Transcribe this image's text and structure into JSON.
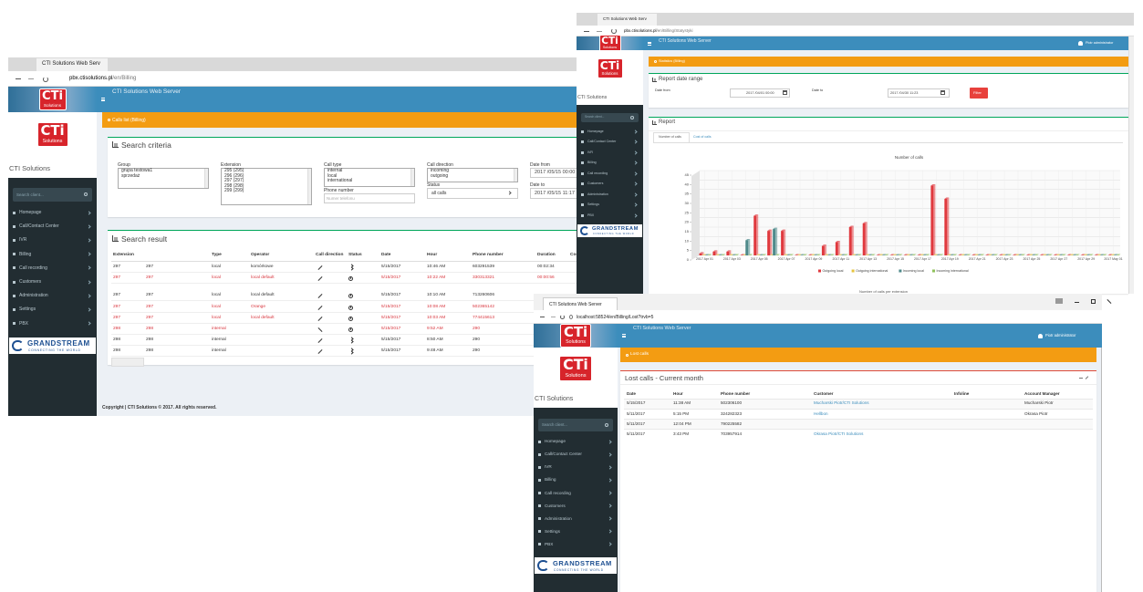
{
  "sidebar": {
    "logo": "CTi",
    "logo_sub": "Solutions",
    "company": "CTI Solutions",
    "search": "Search client...",
    "menu": [
      "Homepage",
      "Call/Contact Center",
      "IVR",
      "Billing",
      "Call recording",
      "Customers",
      "Administration",
      "Settings",
      "PBX"
    ],
    "brand": "GRANDSTREAM",
    "brand_sub": "CONNECTING THE WORLD"
  },
  "header": {
    "app": "CTI Solutions Web Server",
    "user": "Piotr administrator"
  },
  "footer": "Copyright | CTI Solutions © 2017. All rights reserved.",
  "billing": {
    "tab": "CTI Solutions Web Serv",
    "url_host": "pbx.ctisolutions.pl",
    "url_path": "/en/Billing",
    "breadcrumb": "Calls list (Billing)",
    "search_title": "Search criteria",
    "group": {
      "label": "Group",
      "options": [
        "grupa testowa1",
        "sprzedaż"
      ]
    },
    "extension": {
      "label": "Extension",
      "options": [
        "295 (295)",
        "296 (296)",
        "297 (297)",
        "298 (298)",
        "299 (299)"
      ]
    },
    "call_type": {
      "label": "Call type",
      "options": [
        "internal",
        "local",
        "international"
      ]
    },
    "phone": {
      "label": "Phone number",
      "placeholder": "Numer telefonu"
    },
    "call_direction": {
      "label": "Call direction",
      "options": [
        "incoming",
        "outgoing"
      ]
    },
    "status": {
      "label": "Status",
      "value": "all calls"
    },
    "date_from": {
      "label": "Date from",
      "value": "2017 /05/15 00:00"
    },
    "date_to": {
      "label": "Date to",
      "value": "2017 /05/15 11:17"
    },
    "result_title": "Search result",
    "columns": [
      "Extension",
      "Type",
      "Operator",
      "Call direction",
      "Status",
      "Date",
      "Hour",
      "Phone number",
      "Duration",
      "Cost"
    ],
    "rows": [
      {
        "extension": "297",
        "extension_name": "297",
        "type": "local",
        "operator": "komórkowe",
        "date": "5/15/2017",
        "hour": "10:46 AM",
        "phone": "603291539",
        "duration": "00:02:34"
      },
      {
        "extension": "297",
        "extension_name": "297",
        "type": "local",
        "operator": "local default",
        "date": "5/15/2017",
        "hour": "10:22 AM",
        "phone": "330313321",
        "duration": "00:00:56",
        "color": "#d9363e"
      },
      {
        "extension": "297",
        "extension_name": "297",
        "type": "local",
        "operator": "local default",
        "date": "5/15/2017",
        "hour": "10:10 AM",
        "phone": "713260606"
      },
      {
        "extension": "297",
        "extension_name": "297",
        "type": "local",
        "operator": "Orange",
        "date": "5/15/2017",
        "hour": "10:08 AM",
        "phone": "502365142",
        "color": "#d9363e"
      },
      {
        "extension": "297",
        "extension_name": "297",
        "type": "local",
        "operator": "local default",
        "date": "5/15/2017",
        "hour": "10:03 AM",
        "phone": "774415613",
        "color": "#d9363e"
      },
      {
        "extension": "298",
        "extension_name": "298",
        "type": "internal",
        "date": "5/15/2017",
        "hour": "9:52 AM",
        "phone": "290",
        "color": "#d9363e"
      },
      {
        "extension": "298",
        "extension_name": "298",
        "type": "internal",
        "date": "5/15/2017",
        "hour": "8:50 AM",
        "phone": "290"
      },
      {
        "extension": "298",
        "extension_name": "298",
        "type": "internal",
        "date": "5/15/2017",
        "hour": "9:48 AM",
        "phone": "290"
      }
    ]
  },
  "stats": {
    "tab": "CTI Solutions Web Serv",
    "url_host": "pbx.ctisolutions.pl",
    "url_path": "/en/Billing/Statystyki",
    "breadcrumb": "Statistics (Billing)",
    "range_title": "Report date range",
    "date_from_label": "Date from",
    "date_from": "2017 /04/01 00:00",
    "date_to_label": "Date to",
    "date_to": "2017 /04/30 11:23",
    "filter": "Filter",
    "report_title": "Report",
    "tabs": [
      "Number of calls",
      "Cost of calls"
    ],
    "next_title": "Number of calls per extension",
    "chart_data": {
      "type": "bar",
      "title": "Number of calls",
      "categories": [
        "2017 Apr 01",
        null,
        "2017 Apr 03",
        null,
        "2017 Apr 05",
        null,
        "2017 Apr 07",
        null,
        "2017 Apr 09",
        null,
        "2017 Apr 11",
        null,
        "2017 Apr 13",
        null,
        "2017 Apr 15",
        null,
        "2017 Apr 17",
        null,
        "2017 Apr 19",
        null,
        "2017 Apr 21",
        null,
        "2017 Apr 23",
        null,
        "2017 Apr 25",
        null,
        "2017 Apr 27",
        null,
        "2017 Apr 29",
        null,
        "2017 May 01"
      ],
      "series": [
        {
          "name": "Outgoing local",
          "color": "#e0393e",
          "values": [
            1,
            2,
            2,
            0,
            21,
            13,
            13,
            0,
            0,
            5,
            7,
            15,
            17,
            0,
            0,
            0,
            0,
            37,
            30,
            0,
            0,
            0,
            0,
            0,
            0,
            0,
            0,
            0,
            0,
            0,
            0
          ]
        },
        {
          "name": "Outgoing international",
          "color": "#e6c43f",
          "values": [
            0,
            0,
            0,
            0,
            0,
            0,
            0,
            0,
            0,
            0,
            0,
            0,
            0,
            0,
            0,
            0,
            0,
            0,
            0,
            0,
            0,
            0,
            0,
            0,
            0,
            0,
            0,
            0,
            0,
            0,
            0
          ]
        },
        {
          "name": "Incoming local",
          "color": "#4f8a8b",
          "values": [
            0,
            0,
            0,
            8,
            0,
            14,
            0,
            0,
            0,
            0,
            0,
            0,
            0,
            0,
            0,
            0,
            0,
            0,
            0,
            0,
            0,
            0,
            0,
            0,
            0,
            0,
            0,
            0,
            0,
            0,
            0
          ]
        },
        {
          "name": "Incoming international",
          "color": "#8fc15a",
          "values": [
            0,
            0,
            0,
            0,
            0,
            0,
            0,
            0,
            0,
            0,
            0,
            0,
            0,
            0,
            0,
            0,
            0,
            0,
            0,
            0,
            0,
            0,
            0,
            0,
            0,
            0,
            0,
            0,
            0,
            0,
            0
          ]
        }
      ],
      "ylim": [
        0,
        45
      ],
      "yticks": [
        0,
        5,
        10,
        15,
        20,
        25,
        30,
        35,
        40,
        45
      ],
      "grid": true,
      "legend": "bottom"
    }
  },
  "lost": {
    "tab": "CTI Solutions Web Server",
    "url": "localhost:58524/en/Billing/Lost?trvb=5",
    "breadcrumb": "Lost calls",
    "title": "Lost calls - Current month",
    "columns": [
      "Date",
      "Hour",
      "Phone number",
      "Customer",
      "Infoline",
      "Account Manager"
    ],
    "rows": [
      {
        "date": "5/15/2017",
        "hour": "11:38 AM",
        "phone": "502306100",
        "customer": "Mucharski Piotr/CTI Solutions",
        "manager": "Mucharski Piotr"
      },
      {
        "date": "5/11/2017",
        "hour": "5:15 PM",
        "phone": "324282323",
        "customer": "Hellbon",
        "manager": "Okrasa Piotr"
      },
      {
        "date": "5/11/2017",
        "hour": "12:04 PM",
        "phone": "790225582"
      },
      {
        "date": "5/11/2017",
        "hour": "3:43 PM",
        "phone": "703957914",
        "customer": "Okrasa Piotr/CTI Solutions"
      }
    ]
  }
}
